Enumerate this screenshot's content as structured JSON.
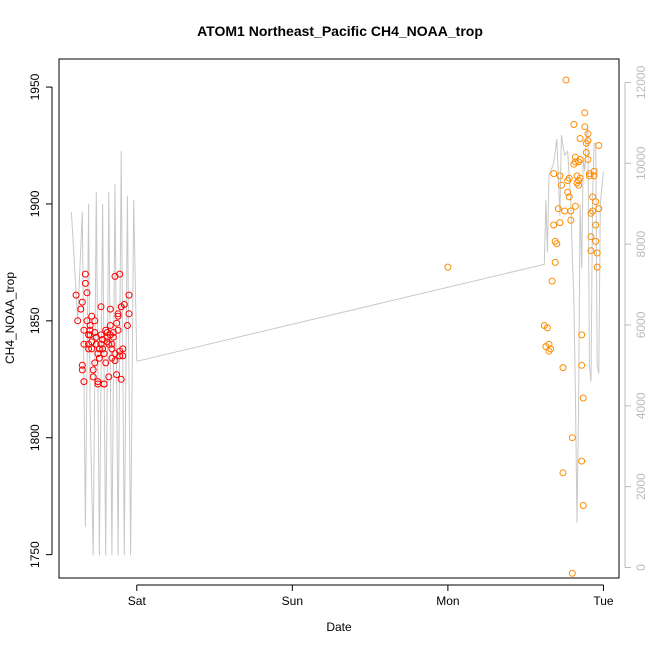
{
  "chart_data": {
    "type": "scatter",
    "title": "ATOM1 Northeast_Pacific CH4_NOAA_trop",
    "xlabel": "Date",
    "ylabel": "CH4_NOAA_trop",
    "x_ticks": [
      "Sat",
      "Sun",
      "Mon",
      "Tue"
    ],
    "y_ticks": [
      1750,
      1800,
      1850,
      1900,
      1950
    ],
    "y_right_ticks": [
      0,
      2000,
      4000,
      6000,
      8000,
      10000,
      12000
    ],
    "xlim_days": [
      -0.5,
      3.1
    ],
    "ylim": [
      1740,
      1962
    ],
    "y_right_lim": [
      -260,
      12580
    ],
    "colors": {
      "series_early": "#ff0000",
      "series_late": "#ff8c00",
      "altitude_line": "#c8c8c8",
      "axis": "#000000",
      "right_axis": "#bbbbbb"
    },
    "series": [
      {
        "color": "#ff0000",
        "points": [
          [
            -0.39,
            1861
          ],
          [
            -0.38,
            1850
          ],
          [
            -0.36,
            1855
          ],
          [
            -0.35,
            1858
          ],
          [
            -0.35,
            1831
          ],
          [
            -0.35,
            1829
          ],
          [
            -0.34,
            1824
          ],
          [
            -0.34,
            1840
          ],
          [
            -0.34,
            1846
          ],
          [
            -0.33,
            1870
          ],
          [
            -0.33,
            1866
          ],
          [
            -0.32,
            1862
          ],
          [
            -0.32,
            1850
          ],
          [
            -0.31,
            1844
          ],
          [
            -0.31,
            1840
          ],
          [
            -0.31,
            1838
          ],
          [
            -0.3,
            1848
          ],
          [
            -0.3,
            1846
          ],
          [
            -0.3,
            1844
          ],
          [
            -0.29,
            1852
          ],
          [
            -0.29,
            1841
          ],
          [
            -0.29,
            1838
          ],
          [
            -0.28,
            1829
          ],
          [
            -0.28,
            1826
          ],
          [
            -0.27,
            1832
          ],
          [
            -0.27,
            1850
          ],
          [
            -0.27,
            1845
          ],
          [
            -0.26,
            1843
          ],
          [
            -0.26,
            1840
          ],
          [
            -0.25,
            1836
          ],
          [
            -0.25,
            1824
          ],
          [
            -0.25,
            1823
          ],
          [
            -0.24,
            1838
          ],
          [
            -0.24,
            1834
          ],
          [
            -0.23,
            1856
          ],
          [
            -0.23,
            1840
          ],
          [
            -0.23,
            1844
          ],
          [
            -0.22,
            1842
          ],
          [
            -0.22,
            1838
          ],
          [
            -0.21,
            1823
          ],
          [
            -0.21,
            1823
          ],
          [
            -0.21,
            1836
          ],
          [
            -0.2,
            1832
          ],
          [
            -0.2,
            1846
          ],
          [
            -0.19,
            1845
          ],
          [
            -0.19,
            1843
          ],
          [
            -0.19,
            1841
          ],
          [
            -0.18,
            1826
          ],
          [
            -0.18,
            1840
          ],
          [
            -0.17,
            1848
          ],
          [
            -0.17,
            1855
          ],
          [
            -0.17,
            1844
          ],
          [
            -0.16,
            1840
          ],
          [
            -0.16,
            1838
          ],
          [
            -0.16,
            1834
          ],
          [
            -0.15,
            1845
          ],
          [
            -0.15,
            1843
          ],
          [
            -0.14,
            1869
          ],
          [
            -0.14,
            1836
          ],
          [
            -0.14,
            1833
          ],
          [
            -0.13,
            1827
          ],
          [
            -0.13,
            1849
          ],
          [
            -0.12,
            1846
          ],
          [
            -0.12,
            1852
          ],
          [
            -0.12,
            1853
          ],
          [
            -0.11,
            1837
          ],
          [
            -0.11,
            1835
          ],
          [
            -0.11,
            1870
          ],
          [
            -0.1,
            1856
          ],
          [
            -0.1,
            1856
          ],
          [
            -0.1,
            1825
          ],
          [
            -0.09,
            1838
          ],
          [
            -0.09,
            1835
          ],
          [
            -0.08,
            1857
          ],
          [
            -0.06,
            1848
          ],
          [
            -0.05,
            1861
          ],
          [
            -0.05,
            1853
          ]
        ]
      },
      {
        "color": "#ff8c00",
        "points": [
          [
            2.0,
            1873
          ],
          [
            2.62,
            1848
          ],
          [
            2.63,
            1839
          ],
          [
            2.64,
            1847
          ],
          [
            2.65,
            1840
          ],
          [
            2.65,
            1837
          ],
          [
            2.66,
            1838
          ],
          [
            2.67,
            1867
          ],
          [
            2.68,
            1891
          ],
          [
            2.68,
            1913
          ],
          [
            2.69,
            1884
          ],
          [
            2.69,
            1875
          ],
          [
            2.7,
            1883
          ],
          [
            2.71,
            1898
          ],
          [
            2.72,
            1912
          ],
          [
            2.72,
            1892
          ],
          [
            2.73,
            1908
          ],
          [
            2.74,
            1830
          ],
          [
            2.74,
            1785
          ],
          [
            2.75,
            1897
          ],
          [
            2.76,
            1953
          ],
          [
            2.77,
            1910
          ],
          [
            2.77,
            1905
          ],
          [
            2.78,
            1911
          ],
          [
            2.78,
            1903
          ],
          [
            2.79,
            1897
          ],
          [
            2.79,
            1893
          ],
          [
            2.8,
            1742
          ],
          [
            2.8,
            1800
          ],
          [
            2.81,
            1934
          ],
          [
            2.81,
            1917
          ],
          [
            2.82,
            1920
          ],
          [
            2.82,
            1918
          ],
          [
            2.82,
            1899
          ],
          [
            2.83,
            1912
          ],
          [
            2.83,
            1909
          ],
          [
            2.84,
            1908
          ],
          [
            2.84,
            1918
          ],
          [
            2.84,
            1910
          ],
          [
            2.85,
            1928
          ],
          [
            2.85,
            1919
          ],
          [
            2.85,
            1911
          ],
          [
            2.86,
            1844
          ],
          [
            2.86,
            1831
          ],
          [
            2.86,
            1790
          ],
          [
            2.87,
            1771
          ],
          [
            2.87,
            1817
          ],
          [
            2.88,
            1939
          ],
          [
            2.88,
            1933
          ],
          [
            2.89,
            1926
          ],
          [
            2.89,
            1922
          ],
          [
            2.9,
            1930
          ],
          [
            2.9,
            1927
          ],
          [
            2.9,
            1919
          ],
          [
            2.91,
            1912
          ],
          [
            2.91,
            1913
          ],
          [
            2.92,
            1886
          ],
          [
            2.92,
            1880
          ],
          [
            2.92,
            1896
          ],
          [
            2.93,
            1903
          ],
          [
            2.93,
            1897
          ],
          [
            2.94,
            1914
          ],
          [
            2.94,
            1912
          ],
          [
            2.95,
            1901
          ],
          [
            2.95,
            1891
          ],
          [
            2.95,
            1884
          ],
          [
            2.96,
            1879
          ],
          [
            2.96,
            1873
          ],
          [
            2.97,
            1925
          ],
          [
            2.97,
            1898
          ]
        ]
      }
    ],
    "altitude_line": [
      [
        -0.42,
        8800
      ],
      [
        -0.38,
        6100
      ],
      [
        -0.35,
        8800
      ],
      [
        -0.33,
        1000
      ],
      [
        -0.31,
        9000
      ],
      [
        -0.3,
        4000
      ],
      [
        -0.28,
        300
      ],
      [
        -0.26,
        9300
      ],
      [
        -0.24,
        300
      ],
      [
        -0.22,
        9000
      ],
      [
        -0.2,
        300
      ],
      [
        -0.18,
        9300
      ],
      [
        -0.16,
        300
      ],
      [
        -0.14,
        9500
      ],
      [
        -0.12,
        300
      ],
      [
        -0.1,
        10300
      ],
      [
        -0.08,
        300
      ],
      [
        -0.06,
        9200
      ],
      [
        -0.04,
        300
      ],
      [
        -0.02,
        9100
      ],
      [
        0.0,
        5100
      ],
      [
        2.62,
        7500
      ],
      [
        2.63,
        9100
      ],
      [
        2.64,
        7800
      ],
      [
        2.65,
        9700
      ],
      [
        2.68,
        10000
      ],
      [
        2.7,
        10600
      ],
      [
        2.72,
        8700
      ],
      [
        2.73,
        10700
      ],
      [
        2.75,
        10200
      ],
      [
        2.77,
        10300
      ],
      [
        2.79,
        9000
      ],
      [
        2.8,
        7700
      ],
      [
        2.81,
        6600
      ],
      [
        2.82,
        4300
      ],
      [
        2.83,
        1100
      ],
      [
        2.84,
        4000
      ],
      [
        2.85,
        9000
      ],
      [
        2.86,
        7400
      ],
      [
        2.87,
        10100
      ],
      [
        2.88,
        9800
      ],
      [
        2.89,
        10700
      ],
      [
        2.9,
        10900
      ],
      [
        2.91,
        5000
      ],
      [
        2.92,
        4600
      ],
      [
        2.93,
        9200
      ],
      [
        2.94,
        10500
      ],
      [
        2.95,
        10500
      ],
      [
        2.96,
        5000
      ],
      [
        2.97,
        4800
      ],
      [
        2.98,
        9000
      ],
      [
        3.0,
        9800
      ]
    ]
  }
}
